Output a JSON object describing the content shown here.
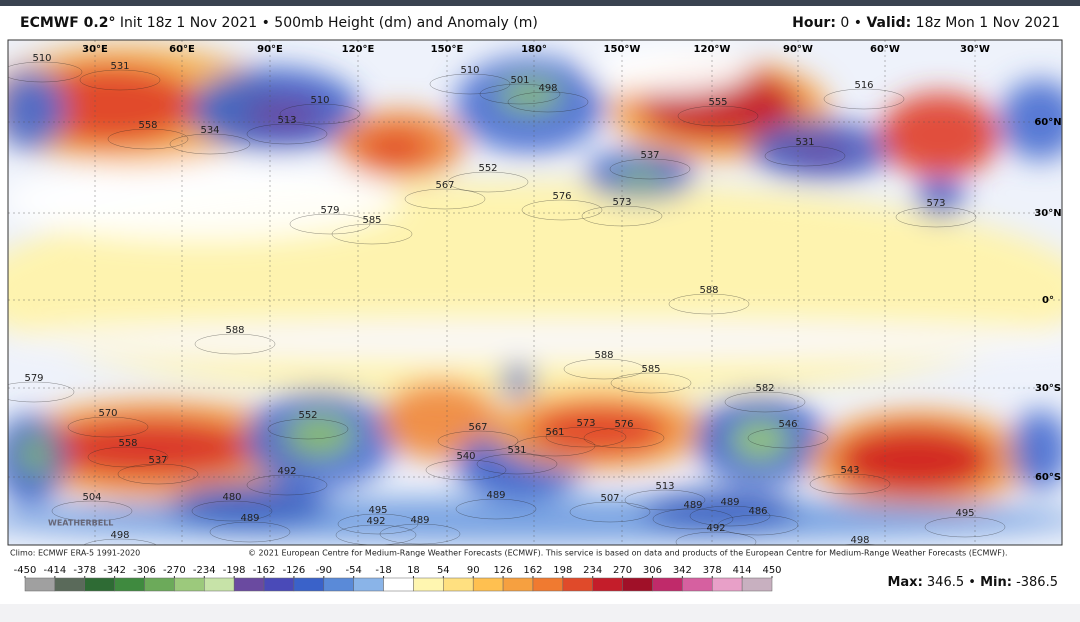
{
  "header": {
    "model": "ECMWF 0.2°",
    "init": "Init 18z 1 Nov 2021",
    "separator": "•",
    "product": "500mb Height (dm) and Anomaly (m)",
    "hour_label": "Hour:",
    "hour": "0",
    "valid_label": "Valid:",
    "valid": "18z Mon 1 Nov 2021"
  },
  "map": {
    "longitudes": [
      "30°E",
      "60°E",
      "90°E",
      "120°E",
      "150°E",
      "180°",
      "150°W",
      "120°W",
      "90°W",
      "60°W",
      "30°W"
    ],
    "latitudes": [
      "60°N",
      "30°N",
      "0°",
      "30°S",
      "60°S"
    ],
    "contour_labels": [
      "531",
      "510",
      "558",
      "534",
      "510",
      "513",
      "567",
      "579",
      "585",
      "510",
      "501",
      "498",
      "552",
      "537",
      "576",
      "573",
      "555",
      "516",
      "531",
      "573",
      "588",
      "588",
      "588",
      "585",
      "582",
      "579",
      "570",
      "558",
      "537",
      "552",
      "492",
      "480",
      "489",
      "495",
      "492",
      "489",
      "567",
      "561",
      "573",
      "576",
      "540",
      "531",
      "489",
      "507",
      "513",
      "489",
      "489",
      "492",
      "486",
      "546",
      "543",
      "498",
      "495",
      "504",
      "498"
    ],
    "watermark": "WEATHERBELL"
  },
  "footer": {
    "climo": "Climo: ECMWF ERA-5 1991-2020",
    "copyright": "© 2021 European Centre for Medium-Range Weather Forecasts (ECMWF). This service is based on data and products of the European Centre for Medium-Range Weather Forecasts (ECMWF)."
  },
  "colorbar": {
    "ticks": [
      -450,
      -414,
      -378,
      -342,
      -306,
      -270,
      -234,
      -198,
      -162,
      -126,
      -90,
      -54,
      -18,
      18,
      54,
      90,
      126,
      162,
      198,
      234,
      270,
      306,
      342,
      378,
      414,
      450
    ]
  },
  "stats": {
    "max_label": "Max:",
    "max": 346.5,
    "separator": "•",
    "min_label": "Min:",
    "min": -386.5
  }
}
